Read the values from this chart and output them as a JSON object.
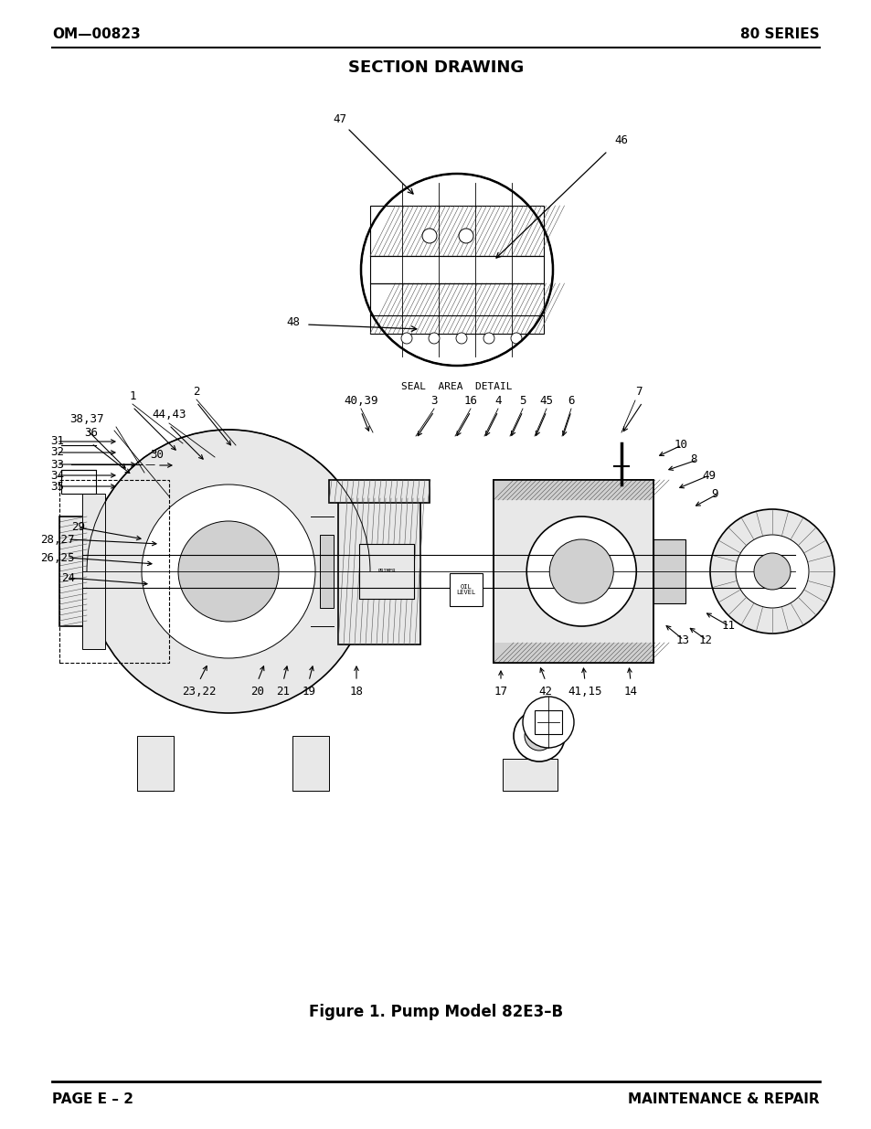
{
  "title": "SECTION DRAWING",
  "header_left": "OM—00823",
  "header_right": "80 SERIES",
  "footer_left": "PAGE E – 2",
  "footer_right": "MAINTENANCE & REPAIR",
  "figure_caption": "Figure 1. Pump Model 82E3–B",
  "seal_label": "SEAL  AREA  DETAIL",
  "background_color": "#ffffff",
  "page_width": 9.54,
  "page_height": 12.35,
  "dpi": 100
}
